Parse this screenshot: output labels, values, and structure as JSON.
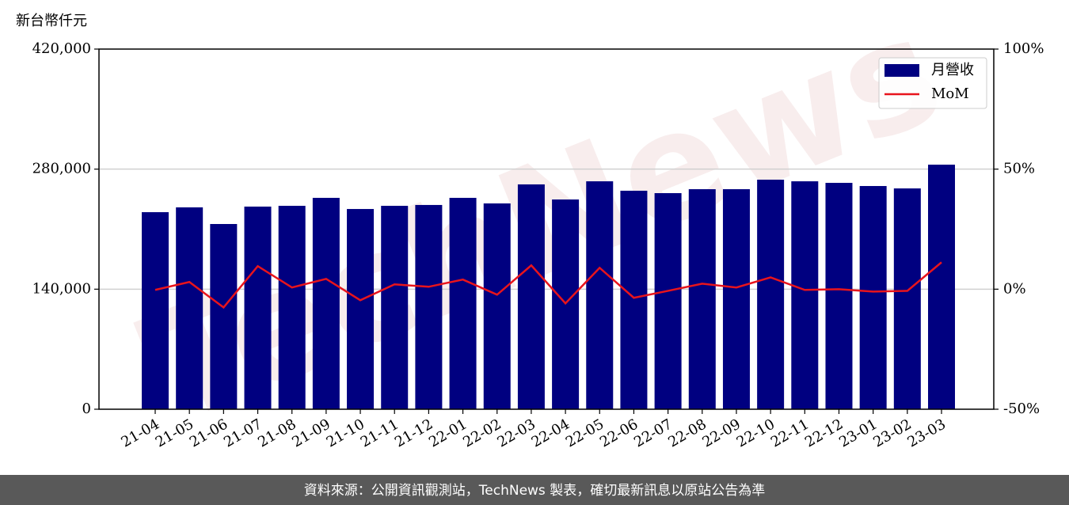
{
  "chart_data": {
    "type": "bar",
    "watermark": "TechNews",
    "y_label": "新台幣仟元",
    "source": "資料來源：公開資訊觀測站，TechNews 製表，確切最新訊息以原站公告為準",
    "categories": [
      "21-04",
      "21-05",
      "21-06",
      "21-07",
      "21-08",
      "21-09",
      "21-10",
      "21-11",
      "21-12",
      "22-01",
      "22-02",
      "22-03",
      "22-04",
      "22-05",
      "22-06",
      "22-07",
      "22-08",
      "22-09",
      "22-10",
      "22-11",
      "22-12",
      "23-01",
      "23-02",
      "23-03"
    ],
    "series": [
      {
        "name": "月營收",
        "type": "bar",
        "color": "#000080",
        "values": [
          229800,
          235400,
          216000,
          236300,
          237200,
          246500,
          233500,
          237200,
          238200,
          246500,
          240000,
          262200,
          244600,
          265800,
          254800,
          252000,
          256600,
          256600,
          267700,
          265800,
          264000,
          260300,
          257500,
          285200
        ]
      },
      {
        "name": "MoM",
        "type": "line",
        "axis": "y2",
        "color": "#e8141c",
        "values": [
          -0.3,
          3.0,
          -7.6,
          9.6,
          0.7,
          4.3,
          -4.6,
          2.0,
          1.0,
          4.0,
          -2.3,
          9.9,
          -5.9,
          8.9,
          -3.6,
          -0.7,
          2.3,
          0.7,
          4.9,
          -0.3,
          0,
          -1.0,
          -0.7,
          11.2
        ]
      }
    ],
    "ylim": [
      0,
      420000
    ],
    "yticks": [
      0,
      {
        "value": 140000,
        "label": "140,000"
      },
      {
        "value": 280000,
        "label": "280,000"
      },
      {
        "value": 420000,
        "label": "420,000"
      }
    ],
    "y2lim": [
      -50,
      100
    ],
    "y2ticks": [
      {
        "value": -50,
        "label": "-50%"
      },
      {
        "value": 0,
        "label": "0%"
      },
      {
        "value": 50,
        "label": "50%"
      },
      {
        "value": 100,
        "label": "100%"
      }
    ],
    "grid": true,
    "legend": "upper-right"
  }
}
